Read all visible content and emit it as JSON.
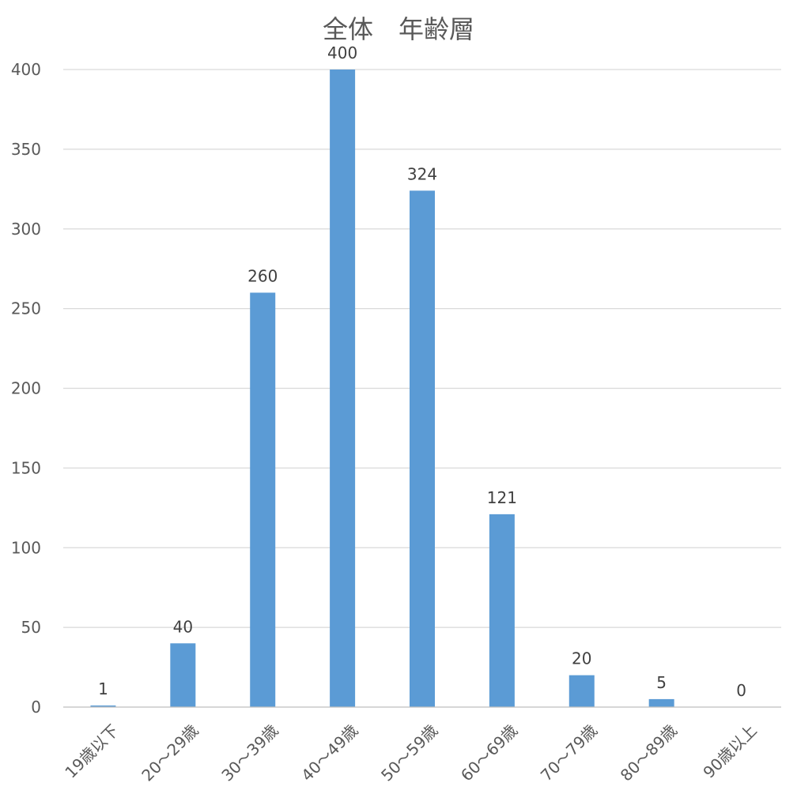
{
  "chart_data": {
    "type": "bar",
    "title": "全体　年齢層",
    "categories": [
      "19歳以下",
      "20～29歳",
      "30～39歳",
      "40～49歳",
      "50～59歳",
      "60～69歳",
      "70～79歳",
      "80～89歳",
      "90歳以上"
    ],
    "series": [
      {
        "values": [
          1,
          40,
          260,
          400,
          324,
          121,
          20,
          5,
          0
        ],
        "color": "#5b9bd5"
      }
    ],
    "data_labels": [
      "1",
      "40",
      "260",
      "400",
      "324",
      "121",
      "20",
      "5",
      "0"
    ],
    "ylim": [
      0,
      400
    ],
    "yticks": [
      "0",
      "50",
      "100",
      "150",
      "200",
      "250",
      "300",
      "350",
      "400"
    ],
    "xlabel": "",
    "ylabel": "",
    "grid": true,
    "legend": "none"
  }
}
